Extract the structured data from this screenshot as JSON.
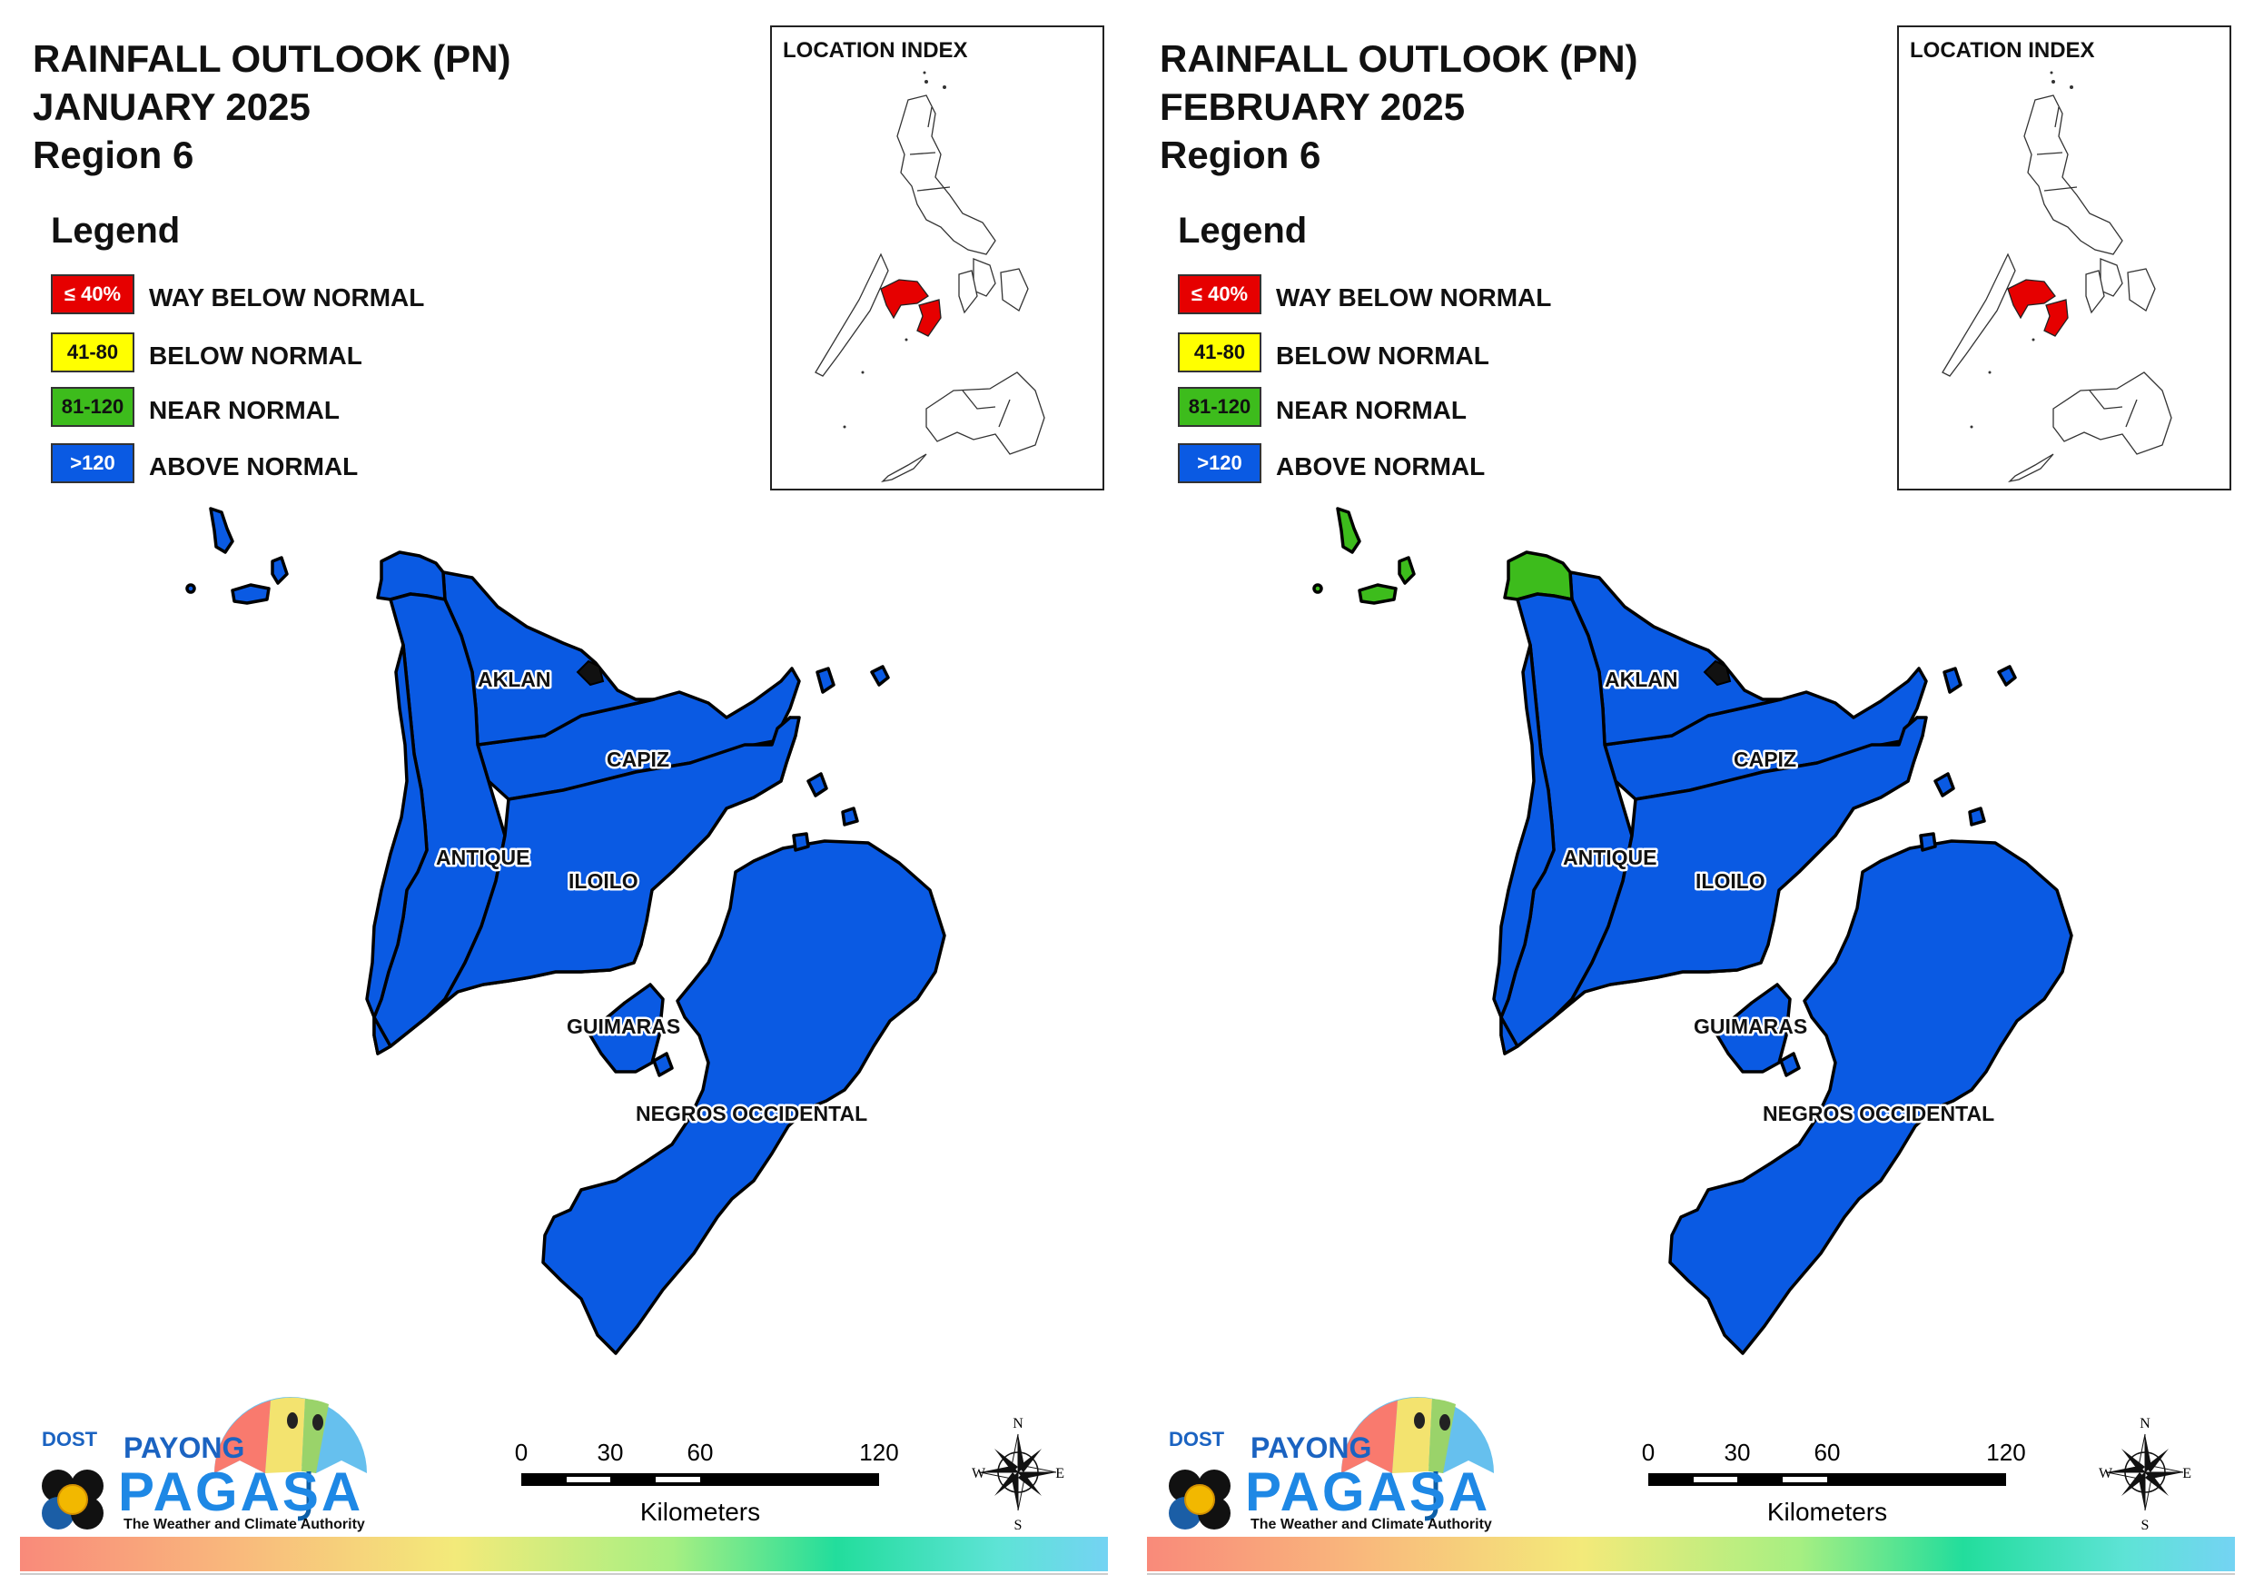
{
  "colors": {
    "way_below": "#e60000",
    "below": "#ffff00",
    "near": "#3dbc1c",
    "above": "#0a5ae3"
  },
  "legend": {
    "title": "Legend",
    "items": [
      {
        "range": "≤ 40%",
        "label": "WAY BELOW NORMAL",
        "color": "#e60000",
        "text_color": "#ffffff"
      },
      {
        "range": "41-80",
        "label": "BELOW NORMAL",
        "color": "#ffff00",
        "text_color": "#111111"
      },
      {
        "range": "81-120",
        "label": "NEAR NORMAL",
        "color": "#3dbc1c",
        "text_color": "#111111"
      },
      {
        "range": ">120",
        "label": "ABOVE NORMAL",
        "color": "#0a5ae3",
        "text_color": "#ffffff"
      }
    ]
  },
  "inset": {
    "title": "LOCATION INDEX",
    "highlight_color": "#e60000"
  },
  "province_labels": {
    "aklan": "AKLAN",
    "capiz": "CAPIZ",
    "antique": "ANTIQUE",
    "iloilo": "ILOILO",
    "guimaras": "GUIMARAS",
    "negros": "NEGROS OCCIDENTAL"
  },
  "panels": [
    {
      "title_line1": "RAINFALL OUTLOOK (PN)",
      "title_line2": "JANUARY 2025",
      "title_line3": "Region 6",
      "categories": {
        "islands": "ABOVE NORMAL",
        "aklan_tip": "ABOVE NORMAL",
        "aklan": "ABOVE NORMAL",
        "capiz": "ABOVE NORMAL",
        "antique": "ABOVE NORMAL",
        "iloilo": "ABOVE NORMAL",
        "guimaras": "ABOVE NORMAL",
        "negros": "ABOVE NORMAL"
      }
    },
    {
      "title_line1": "RAINFALL OUTLOOK (PN)",
      "title_line2": "FEBRUARY 2025",
      "title_line3": "Region 6",
      "categories": {
        "islands": "NEAR NORMAL",
        "aklan_tip": "NEAR NORMAL",
        "aklan": "ABOVE NORMAL",
        "capiz": "ABOVE NORMAL",
        "antique": "ABOVE NORMAL",
        "iloilo": "ABOVE NORMAL",
        "guimaras": "ABOVE NORMAL",
        "negros": "ABOVE NORMAL"
      }
    }
  ],
  "scale": {
    "ticks": [
      "0",
      "30",
      "60",
      "120"
    ],
    "unit": "Kilometers"
  },
  "compass": {
    "n": "N",
    "s": "S",
    "e": "E",
    "w": "W"
  },
  "logo": {
    "dost": "DOST",
    "payong": "PAYONG",
    "pagasa": "PAGASA",
    "tagline": "The Weather and Climate Authority"
  }
}
